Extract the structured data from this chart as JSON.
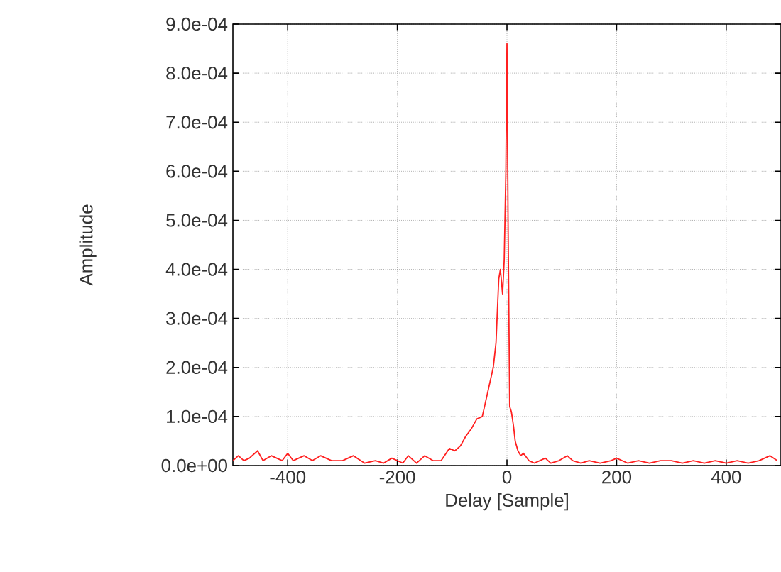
{
  "chart_data": {
    "type": "line",
    "xlabel": "Delay [Sample]",
    "ylabel": "Amplitude",
    "series": [
      {
        "color": "#ff2020",
        "x": [
          -500,
          -490,
          -480,
          -470,
          -455,
          -445,
          -430,
          -410,
          -400,
          -390,
          -370,
          -355,
          -340,
          -320,
          -300,
          -280,
          -260,
          -240,
          -225,
          -210,
          -190,
          -180,
          -165,
          -150,
          -135,
          -120,
          -105,
          -95,
          -85,
          -75,
          -65,
          -55,
          -45,
          -35,
          -25,
          -20,
          -15,
          -12,
          -8,
          -5,
          -2,
          0,
          2,
          5,
          8,
          12,
          15,
          20,
          25,
          30,
          40,
          50,
          60,
          70,
          80,
          95,
          110,
          120,
          135,
          150,
          170,
          190,
          200,
          220,
          240,
          260,
          280,
          300,
          320,
          340,
          360,
          380,
          400,
          420,
          440,
          460,
          480,
          493
        ],
        "values": [
          1e-05,
          2e-05,
          1e-05,
          1.5e-05,
          3e-05,
          1e-05,
          2e-05,
          1e-05,
          2.5e-05,
          1e-05,
          2e-05,
          1e-05,
          2e-05,
          1e-05,
          1e-05,
          2e-05,
          5e-06,
          1e-05,
          5e-06,
          1.5e-05,
          5e-06,
          2e-05,
          5e-06,
          2e-05,
          1e-05,
          1e-05,
          3.5e-05,
          3e-05,
          4e-05,
          6e-05,
          7.5e-05,
          9.5e-05,
          0.0001,
          0.00015,
          0.0002,
          0.00025,
          0.00038,
          0.0004,
          0.00035,
          0.00042,
          0.0006,
          0.00086,
          0.0005,
          0.00012,
          0.00011,
          8e-05,
          5e-05,
          3e-05,
          2e-05,
          2.5e-05,
          1e-05,
          5e-06,
          1e-05,
          1.5e-05,
          5e-06,
          1e-05,
          2e-05,
          1e-05,
          5e-06,
          1e-05,
          5e-06,
          1e-05,
          1.5e-05,
          5e-06,
          1e-05,
          5e-06,
          1e-05,
          1e-05,
          5e-06,
          1e-05,
          5e-06,
          1e-05,
          5e-06,
          1e-05,
          5e-06,
          1e-05,
          2e-05,
          1e-05
        ]
      }
    ],
    "xlim": [
      -500,
      500
    ],
    "xticks": [
      -400,
      -200,
      0,
      200,
      400
    ],
    "ylim": [
      0,
      0.0009
    ],
    "yticks": [
      {
        "value": 0,
        "label": "0.0e+00"
      },
      {
        "value": 0.0001,
        "label": "1.0e-04"
      },
      {
        "value": 0.0002,
        "label": "2.0e-04"
      },
      {
        "value": 0.0003,
        "label": "3.0e-04"
      },
      {
        "value": 0.0004,
        "label": "4.0e-04"
      },
      {
        "value": 0.0005,
        "label": "5.0e-04"
      },
      {
        "value": 0.0006,
        "label": "6.0e-04"
      },
      {
        "value": 0.0007,
        "label": "7.0e-04"
      },
      {
        "value": 0.0008,
        "label": "8.0e-04"
      },
      {
        "value": 0.0009,
        "label": "9.0e-04"
      }
    ],
    "grid": true,
    "marker": "none",
    "line_style": "solid"
  }
}
